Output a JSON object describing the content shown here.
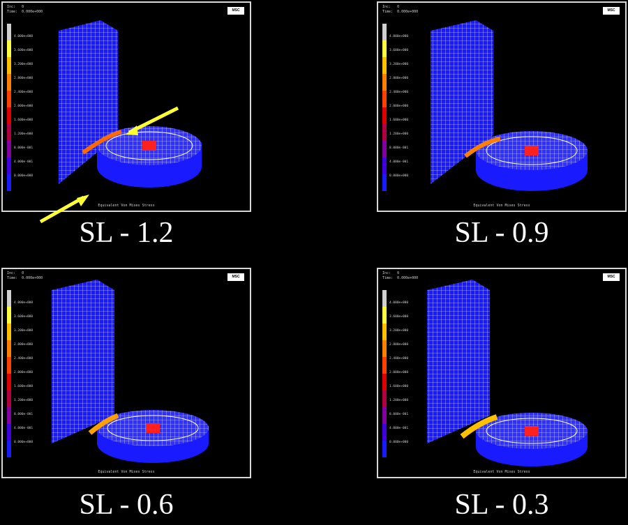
{
  "panels": [
    {
      "label": "SL - 1.2",
      "header": "Inc:   0\nTime:  0.000e+000",
      "logo": "MSC",
      "footer": "Equivalent Von Mises Stress",
      "scale": [
        "4.000e+000",
        "3.600e+000",
        "3.200e+000",
        "2.800e+000",
        "2.400e+000",
        "2.000e+000",
        "1.600e+000",
        "1.200e+000",
        "8.000e-001",
        "4.000e-001",
        "0.000e+000"
      ]
    },
    {
      "label": "SL - 0.9",
      "header": "Inc:   0\nTime:  0.000e+000",
      "logo": "MSC",
      "footer": "Equivalent Von Mises Stress",
      "scale": [
        "4.000e+000",
        "3.600e+000",
        "3.200e+000",
        "2.800e+000",
        "2.400e+000",
        "2.000e+000",
        "1.600e+000",
        "1.200e+000",
        "8.000e-001",
        "4.000e-001",
        "0.000e+000"
      ]
    },
    {
      "label": "SL - 0.6",
      "header": "Inc:   0\nTime:  0.000e+000",
      "logo": "MSC",
      "footer": "Equivalent Von Mises Stress",
      "scale": [
        "4.000e+000",
        "3.600e+000",
        "3.200e+000",
        "2.800e+000",
        "2.400e+000",
        "2.000e+000",
        "1.600e+000",
        "1.200e+000",
        "8.000e-001",
        "4.000e-001",
        "0.000e+000"
      ]
    },
    {
      "label": "SL - 0.3",
      "header": "Inc:   0\nTime:  0.000e+000",
      "logo": "MSC",
      "footer": "Equivalent Von Mises Stress",
      "scale": [
        "4.000e+000",
        "3.600e+000",
        "3.200e+000",
        "2.800e+000",
        "2.400e+000",
        "2.000e+000",
        "1.600e+000",
        "1.200e+000",
        "8.000e-001",
        "4.000e-001",
        "0.000e+000"
      ]
    }
  ],
  "colors": {
    "mesh": "#1a1aff",
    "highlight": "#ff2020",
    "arrow": "#ffff33"
  }
}
